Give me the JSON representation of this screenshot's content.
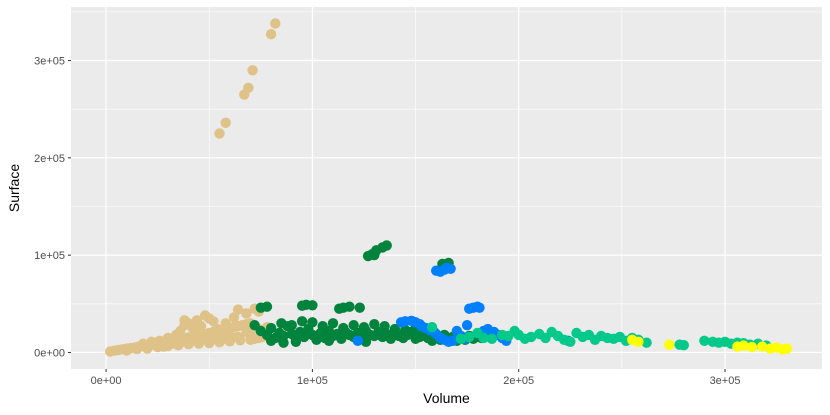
{
  "chart_data": {
    "type": "scatter",
    "title": "",
    "xlabel": "Volume",
    "ylabel": "Surface",
    "xlim": [
      -17000,
      347000
    ],
    "ylim": [
      -17000,
      355000
    ],
    "x_ticks": [
      0,
      100000,
      200000,
      300000
    ],
    "x_tick_labels": [
      "0e+00",
      "1e+05",
      "2e+05",
      "3e+05"
    ],
    "y_ticks": [
      0,
      100000,
      200000,
      300000
    ],
    "y_tick_labels": [
      "0e+00",
      "1e+05",
      "2e+05",
      "3e+05"
    ],
    "grid": true,
    "legend": "none",
    "colors": {
      "panel_background": "#EBEBEB",
      "grid_major": "#FFFFFF",
      "tan": "#DFC288",
      "dark_green": "#00843D",
      "blue": "#0080FF",
      "teal": "#00C98A",
      "yellow": "#FFFF00"
    },
    "series": [
      {
        "color": "#DFC288",
        "points": [
          [
            2000,
            1000
          ],
          [
            4000,
            1800
          ],
          [
            6000,
            2500
          ],
          [
            8000,
            3200
          ],
          [
            10000,
            4000
          ],
          [
            12000,
            4500
          ],
          [
            14000,
            5200
          ],
          [
            16000,
            6000
          ],
          [
            18000,
            6500
          ],
          [
            20000,
            7200
          ],
          [
            22000,
            8000
          ],
          [
            24000,
            8800
          ],
          [
            26000,
            9500
          ],
          [
            28000,
            10500
          ],
          [
            30000,
            11000
          ],
          [
            32000,
            12000
          ],
          [
            34000,
            13000
          ],
          [
            36000,
            13500
          ],
          [
            38000,
            14500
          ],
          [
            40000,
            15500
          ],
          [
            42000,
            16500
          ],
          [
            44000,
            17000
          ],
          [
            46000,
            18000
          ],
          [
            48000,
            19000
          ],
          [
            50000,
            20000
          ],
          [
            52000,
            21000
          ],
          [
            54000,
            22000
          ],
          [
            56000,
            23000
          ],
          [
            58000,
            24000
          ],
          [
            60000,
            25000
          ],
          [
            62000,
            26000
          ],
          [
            64000,
            27000
          ],
          [
            66000,
            28000
          ],
          [
            68000,
            29000
          ],
          [
            70000,
            30000
          ],
          [
            10000,
            2000
          ],
          [
            15000,
            3500
          ],
          [
            20000,
            4000
          ],
          [
            25000,
            5500
          ],
          [
            30000,
            6500
          ],
          [
            35000,
            7500
          ],
          [
            40000,
            8500
          ],
          [
            45000,
            9000
          ],
          [
            50000,
            9500
          ],
          [
            55000,
            10500
          ],
          [
            60000,
            11500
          ],
          [
            65000,
            12500
          ],
          [
            70000,
            13000
          ],
          [
            72000,
            14000
          ],
          [
            74000,
            15000
          ],
          [
            76000,
            16000
          ],
          [
            18000,
            9000
          ],
          [
            22000,
            11000
          ],
          [
            26000,
            12000
          ],
          [
            30000,
            15000
          ],
          [
            34000,
            18000
          ],
          [
            36000,
            22000
          ],
          [
            38000,
            28000
          ],
          [
            40000,
            30000
          ],
          [
            42000,
            25000
          ],
          [
            44000,
            33000
          ],
          [
            46000,
            27000
          ],
          [
            48000,
            38000
          ],
          [
            50000,
            35000
          ],
          [
            52000,
            32000
          ],
          [
            54000,
            24000
          ],
          [
            58000,
            30000
          ],
          [
            62000,
            36000
          ],
          [
            64000,
            44000
          ],
          [
            68000,
            40000
          ],
          [
            72000,
            45000
          ],
          [
            74000,
            42000
          ],
          [
            38000,
            33000
          ],
          [
            45000,
            20000
          ],
          [
            56000,
            17000
          ],
          [
            28000,
            6000
          ],
          [
            32000,
            9000
          ],
          [
            36000,
            10000
          ],
          [
            42000,
            12000
          ],
          [
            48000,
            14000
          ],
          [
            52000,
            15000
          ],
          [
            56000,
            13000
          ],
          [
            60000,
            18000
          ],
          [
            64000,
            16000
          ],
          [
            68000,
            21000
          ],
          [
            70000,
            19000
          ],
          [
            74000,
            24000
          ],
          [
            76000,
            23000
          ],
          [
            78000,
            26000
          ],
          [
            55000,
            225000
          ],
          [
            58000,
            236000
          ],
          [
            67000,
            265000
          ],
          [
            69000,
            272000
          ],
          [
            71000,
            290000
          ],
          [
            80000,
            327000
          ],
          [
            82000,
            338000
          ]
        ]
      },
      {
        "color": "#00843D",
        "points": [
          [
            72000,
            28000
          ],
          [
            75000,
            22000
          ],
          [
            78000,
            18000
          ],
          [
            80000,
            25000
          ],
          [
            82000,
            15000
          ],
          [
            84000,
            20000
          ],
          [
            86000,
            17000
          ],
          [
            88000,
            27000
          ],
          [
            90000,
            19000
          ],
          [
            92000,
            14000
          ],
          [
            94000,
            21000
          ],
          [
            96000,
            16000
          ],
          [
            98000,
            24000
          ],
          [
            100000,
            18000
          ],
          [
            102000,
            13000
          ],
          [
            104000,
            20000
          ],
          [
            106000,
            15000
          ],
          [
            108000,
            22000
          ],
          [
            110000,
            17000
          ],
          [
            112000,
            19000
          ],
          [
            114000,
            14000
          ],
          [
            116000,
            21000
          ],
          [
            118000,
            18000
          ],
          [
            120000,
            16000
          ],
          [
            122000,
            20000
          ],
          [
            124000,
            15000
          ],
          [
            126000,
            22000
          ],
          [
            128000,
            18000
          ],
          [
            130000,
            17000
          ],
          [
            132000,
            21000
          ],
          [
            134000,
            16000
          ],
          [
            136000,
            19000
          ],
          [
            138000,
            14000
          ],
          [
            140000,
            20000
          ],
          [
            142000,
            17000
          ],
          [
            144000,
            15000
          ],
          [
            146000,
            18000
          ],
          [
            148000,
            21000
          ],
          [
            150000,
            14000
          ],
          [
            152000,
            16000
          ],
          [
            154000,
            19000
          ],
          [
            156000,
            15000
          ],
          [
            158000,
            12000
          ],
          [
            160000,
            17000
          ],
          [
            162000,
            13000
          ],
          [
            164000,
            18000
          ],
          [
            166000,
            14000
          ],
          [
            168000,
            16000
          ],
          [
            170000,
            12000
          ],
          [
            172000,
            15000
          ],
          [
            174000,
            13000
          ],
          [
            176000,
            17000
          ],
          [
            178000,
            14000
          ],
          [
            180000,
            16000
          ],
          [
            182000,
            15000
          ],
          [
            184000,
            17000
          ],
          [
            85000,
            30000
          ],
          [
            90000,
            28000
          ],
          [
            95000,
            32000
          ],
          [
            100000,
            31000
          ],
          [
            105000,
            27000
          ],
          [
            110000,
            30000
          ],
          [
            115000,
            25000
          ],
          [
            120000,
            28000
          ],
          [
            125000,
            26000
          ],
          [
            130000,
            29000
          ],
          [
            135000,
            27000
          ],
          [
            140000,
            24000
          ],
          [
            145000,
            23000
          ],
          [
            150000,
            25000
          ],
          [
            155000,
            22000
          ],
          [
            75000,
            46000
          ],
          [
            78000,
            47000
          ],
          [
            95000,
            48000
          ],
          [
            97000,
            49000
          ],
          [
            100000,
            48500
          ],
          [
            113000,
            45000
          ],
          [
            115000,
            46000
          ],
          [
            118000,
            47000
          ],
          [
            123000,
            46000
          ],
          [
            127000,
            99000
          ],
          [
            129000,
            101000
          ],
          [
            131000,
            105000
          ],
          [
            134000,
            108000
          ],
          [
            136000,
            110000
          ],
          [
            130000,
            100000
          ],
          [
            163000,
            91000
          ],
          [
            166000,
            92000
          ],
          [
            80000,
            12000
          ],
          [
            86000,
            10000
          ],
          [
            92000,
            11000
          ],
          [
            108000,
            12000
          ],
          [
            126000,
            11000
          ]
        ]
      },
      {
        "color": "#0080FF",
        "points": [
          [
            122000,
            12000
          ],
          [
            143000,
            31000
          ],
          [
            145000,
            32000
          ],
          [
            148000,
            32500
          ],
          [
            150000,
            31000
          ],
          [
            152000,
            29000
          ],
          [
            153000,
            27000
          ],
          [
            155000,
            25000
          ],
          [
            157000,
            23000
          ],
          [
            159000,
            21000
          ],
          [
            160000,
            19000
          ],
          [
            162000,
            15000
          ],
          [
            164000,
            13000
          ],
          [
            166000,
            11000
          ],
          [
            168000,
            12000
          ],
          [
            170000,
            22000
          ],
          [
            172000,
            17000
          ],
          [
            174000,
            14000
          ],
          [
            175000,
            28000
          ],
          [
            176000,
            45000
          ],
          [
            178000,
            46000
          ],
          [
            180000,
            47000
          ],
          [
            181000,
            46000
          ],
          [
            183000,
            22000
          ],
          [
            185000,
            24000
          ],
          [
            188000,
            21000
          ],
          [
            190000,
            18000
          ],
          [
            192000,
            15000
          ],
          [
            194000,
            12000
          ],
          [
            160000,
            84000
          ],
          [
            162000,
            83000
          ],
          [
            164000,
            85000
          ],
          [
            165000,
            87000
          ],
          [
            167000,
            86000
          ],
          [
            224000,
            12000
          ]
        ]
      },
      {
        "color": "#00C98A",
        "points": [
          [
            158000,
            26000
          ],
          [
            172000,
            14000
          ],
          [
            176000,
            16000
          ],
          [
            180000,
            20000
          ],
          [
            183000,
            15000
          ],
          [
            187000,
            14000
          ],
          [
            192000,
            18000
          ],
          [
            195000,
            17000
          ],
          [
            198000,
            22000
          ],
          [
            200000,
            18000
          ],
          [
            203000,
            14000
          ],
          [
            206000,
            16000
          ],
          [
            210000,
            19000
          ],
          [
            213000,
            15000
          ],
          [
            216000,
            21000
          ],
          [
            219000,
            17000
          ],
          [
            222000,
            13000
          ],
          [
            225000,
            11000
          ],
          [
            228000,
            20000
          ],
          [
            231000,
            16000
          ],
          [
            234000,
            18000
          ],
          [
            237000,
            13000
          ],
          [
            240000,
            17000
          ],
          [
            243000,
            15000
          ],
          [
            246000,
            14000
          ],
          [
            249000,
            16000
          ],
          [
            252000,
            12000
          ],
          [
            255000,
            15000
          ],
          [
            258000,
            13000
          ],
          [
            262000,
            10000
          ],
          [
            278000,
            8000
          ],
          [
            280000,
            7500
          ],
          [
            290000,
            12000
          ],
          [
            294000,
            11000
          ],
          [
            297000,
            10000
          ],
          [
            300000,
            11000
          ],
          [
            303000,
            9000
          ],
          [
            306000,
            10000
          ],
          [
            309000,
            9500
          ],
          [
            312000,
            8000
          ],
          [
            316000,
            9000
          ],
          [
            320000,
            7000
          ]
        ]
      },
      {
        "color": "#FFFF00",
        "points": [
          [
            255000,
            13000
          ],
          [
            258000,
            11000
          ],
          [
            273000,
            8000
          ],
          [
            306000,
            6000
          ],
          [
            309000,
            7000
          ],
          [
            313000,
            5500
          ],
          [
            318000,
            6000
          ],
          [
            322000,
            4000
          ],
          [
            325000,
            5000
          ],
          [
            328000,
            3000
          ],
          [
            330000,
            4000
          ]
        ]
      }
    ]
  }
}
